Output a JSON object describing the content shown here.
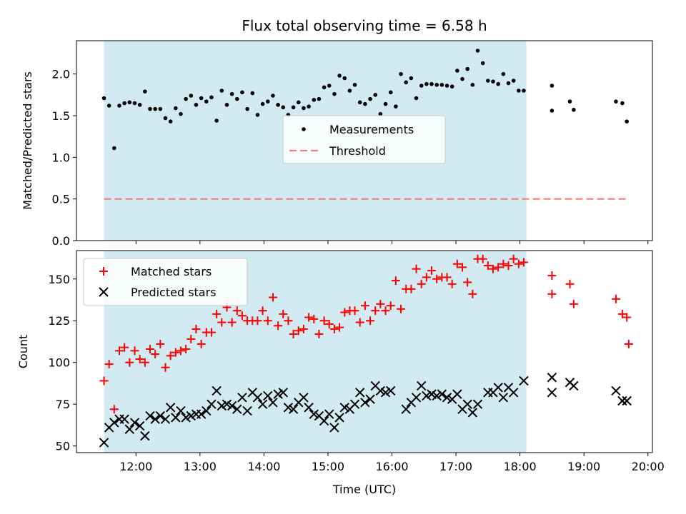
{
  "title": "Flux total observing time = 6.58 h",
  "colors": {
    "measurement": "#000000",
    "threshold": "#f08080",
    "matched": "#ff0000",
    "predicted": "#000000",
    "span": "#add8e6"
  },
  "chart_data": [
    {
      "type": "scatter",
      "ylabel": "Matched/Predicted stars",
      "ylim": [
        0,
        2.4
      ],
      "yticks": [
        0.0,
        0.5,
        1.0,
        1.5,
        2.0
      ],
      "ytick_labels": [
        "0.0",
        "0.5",
        "1.0",
        "1.5",
        "2.0"
      ],
      "xlim": [
        11.07,
        20.07
      ],
      "legend": {
        "placement": "center",
        "measurements": "Measurements",
        "threshold": "Threshold"
      },
      "shaded_span": [
        11.5,
        18.1
      ],
      "threshold": {
        "value": 0.5,
        "x": [
          11.5,
          19.67
        ]
      },
      "measurements": {
        "x": [
          11.5,
          11.58,
          11.66,
          11.74,
          11.82,
          11.9,
          11.98,
          12.06,
          12.14,
          12.22,
          12.3,
          12.38,
          12.46,
          12.54,
          12.62,
          12.7,
          12.78,
          12.86,
          12.94,
          13.02,
          13.1,
          13.18,
          13.26,
          13.34,
          13.42,
          13.5,
          13.58,
          13.66,
          13.74,
          13.82,
          13.9,
          13.98,
          14.06,
          14.14,
          14.22,
          14.3,
          14.38,
          14.46,
          14.54,
          14.62,
          14.7,
          14.78,
          14.86,
          14.94,
          15.02,
          15.1,
          15.18,
          15.26,
          15.34,
          15.42,
          15.5,
          15.58,
          15.66,
          15.74,
          15.82,
          15.9,
          15.98,
          16.06,
          16.14,
          16.22,
          16.3,
          16.38,
          16.46,
          16.54,
          16.62,
          16.7,
          16.78,
          16.86,
          16.94,
          17.02,
          17.1,
          17.18,
          17.26,
          17.34,
          17.42,
          17.5,
          17.58,
          17.66,
          17.74,
          17.82,
          17.9,
          17.98,
          18.06,
          18.5,
          18.5,
          18.78,
          18.84,
          19.5,
          19.6,
          19.67
        ],
        "y": [
          1.71,
          1.62,
          1.11,
          1.62,
          1.65,
          1.66,
          1.65,
          1.63,
          1.79,
          1.58,
          1.58,
          1.58,
          1.47,
          1.43,
          1.59,
          1.52,
          1.7,
          1.74,
          1.63,
          1.71,
          1.67,
          1.72,
          1.44,
          1.8,
          1.63,
          1.76,
          1.7,
          1.78,
          1.58,
          1.77,
          1.51,
          1.64,
          1.67,
          1.74,
          1.63,
          1.6,
          1.51,
          1.6,
          1.66,
          1.59,
          1.61,
          1.69,
          1.7,
          1.84,
          1.86,
          1.76,
          1.98,
          1.95,
          1.8,
          1.87,
          1.66,
          1.64,
          1.7,
          1.75,
          1.52,
          1.64,
          1.78,
          1.61,
          2.0,
          1.9,
          1.95,
          1.71,
          1.86,
          1.88,
          1.88,
          1.87,
          1.87,
          1.86,
          1.85,
          2.04,
          1.94,
          2.06,
          1.87,
          2.28,
          2.13,
          1.92,
          1.91,
          1.88,
          2.0,
          1.89,
          1.92,
          1.8,
          1.8,
          1.86,
          1.56,
          1.67,
          1.57,
          1.67,
          1.65,
          1.43
        ]
      }
    },
    {
      "type": "scatter",
      "xlabel": "Time (UTC)",
      "ylabel": "Count",
      "ylim": [
        46,
        167
      ],
      "yticks": [
        50,
        75,
        100,
        125,
        150
      ],
      "ytick_labels": [
        "50",
        "75",
        "100",
        "125",
        "150"
      ],
      "xlim": [
        11.07,
        20.07
      ],
      "xticks": [
        12,
        13,
        14,
        15,
        16,
        17,
        18,
        19,
        20
      ],
      "xtick_labels": [
        "12:00",
        "13:00",
        "14:00",
        "15:00",
        "16:00",
        "17:00",
        "18:00",
        "19:00",
        "20:00"
      ],
      "legend": {
        "placement": "upper left",
        "matched": "Matched stars",
        "predicted": "Predicted stars"
      },
      "shaded_span": [
        11.5,
        18.1
      ],
      "x": [
        11.5,
        11.58,
        11.66,
        11.74,
        11.82,
        11.9,
        11.98,
        12.06,
        12.14,
        12.22,
        12.3,
        12.38,
        12.46,
        12.54,
        12.62,
        12.7,
        12.78,
        12.86,
        12.94,
        13.02,
        13.1,
        13.18,
        13.26,
        13.34,
        13.42,
        13.5,
        13.58,
        13.66,
        13.74,
        13.82,
        13.9,
        13.98,
        14.06,
        14.14,
        14.22,
        14.3,
        14.38,
        14.46,
        14.54,
        14.62,
        14.7,
        14.78,
        14.86,
        14.94,
        15.02,
        15.1,
        15.18,
        15.26,
        15.34,
        15.42,
        15.5,
        15.58,
        15.66,
        15.74,
        15.82,
        15.9,
        15.98,
        16.06,
        16.14,
        16.22,
        16.3,
        16.38,
        16.46,
        16.54,
        16.62,
        16.7,
        16.78,
        16.86,
        16.94,
        17.02,
        17.1,
        17.18,
        17.26,
        17.34,
        17.42,
        17.5,
        17.58,
        17.66,
        17.74,
        17.82,
        17.9,
        17.98,
        18.06,
        18.5,
        18.5,
        18.78,
        18.84,
        19.5,
        19.6,
        19.67
      ],
      "series": [
        {
          "name": "Matched stars",
          "values": [
            89,
            99,
            72,
            107,
            109,
            100,
            107,
            102,
            100,
            108,
            105,
            111,
            97,
            104,
            106,
            107,
            108,
            114,
            120,
            111,
            118,
            118,
            129,
            124,
            133,
            124,
            131,
            128,
            125,
            125,
            125,
            131,
            125,
            139,
            122,
            129,
            125,
            117,
            119,
            120,
            127,
            126,
            117,
            125,
            123,
            120,
            121,
            130,
            131,
            131,
            124,
            134,
            125,
            131,
            135,
            131,
            134,
            149,
            132,
            144,
            144,
            156,
            147,
            151,
            155,
            150,
            151,
            151,
            147,
            159,
            157,
            148,
            141,
            162,
            162,
            158,
            156,
            157,
            159,
            158,
            162,
            159,
            160,
            152,
            141,
            147,
            135,
            138,
            129,
            127
          ],
          "extra": {
            "x": [
              19.7
            ],
            "y": [
              111
            ]
          }
        },
        {
          "name": "Predicted stars",
          "values": [
            52,
            61,
            64,
            66,
            66,
            60,
            64,
            62,
            56,
            68,
            66,
            68,
            66,
            73,
            67,
            71,
            67,
            68,
            69,
            69,
            71,
            75,
            83,
            74,
            75,
            74,
            72,
            79,
            71,
            82,
            79,
            75,
            80,
            76,
            81,
            82,
            73,
            72,
            76,
            79,
            73,
            69,
            68,
            65,
            69,
            61,
            67,
            73,
            72,
            75,
            82,
            76,
            78,
            86,
            83,
            82,
            83,
            72,
            76,
            79,
            86,
            80,
            81,
            80,
            81,
            79,
            78,
            81,
            72,
            75,
            70,
            75,
            82,
            82,
            85,
            79,
            85,
            82,
            89,
            91,
            82,
            88,
            86,
            83,
            77,
            77
          ],
          "x_override": [
            11.5,
            11.58,
            11.66,
            11.74,
            11.82,
            11.9,
            11.98,
            12.06,
            12.14,
            12.22,
            12.3,
            12.38,
            12.46,
            12.54,
            12.62,
            12.7,
            12.78,
            12.86,
            12.94,
            13.02,
            13.1,
            13.18,
            13.26,
            13.34,
            13.42,
            13.5,
            13.58,
            13.66,
            13.74,
            13.82,
            13.9,
            13.98,
            14.06,
            14.14,
            14.22,
            14.3,
            14.38,
            14.46,
            14.54,
            14.62,
            14.7,
            14.78,
            14.86,
            14.94,
            15.02,
            15.1,
            15.18,
            15.26,
            15.34,
            15.42,
            15.5,
            15.58,
            15.66,
            15.74,
            15.82,
            15.9,
            15.98,
            16.22,
            16.3,
            16.38,
            16.46,
            16.54,
            16.62,
            16.7,
            16.78,
            16.86,
            16.94,
            17.02,
            17.1,
            17.18,
            17.26,
            17.34,
            17.5,
            17.58,
            17.66,
            17.74,
            17.82,
            17.9,
            18.06,
            18.5,
            18.5,
            18.78,
            18.84,
            19.5,
            19.6,
            19.67
          ]
        }
      ]
    }
  ]
}
